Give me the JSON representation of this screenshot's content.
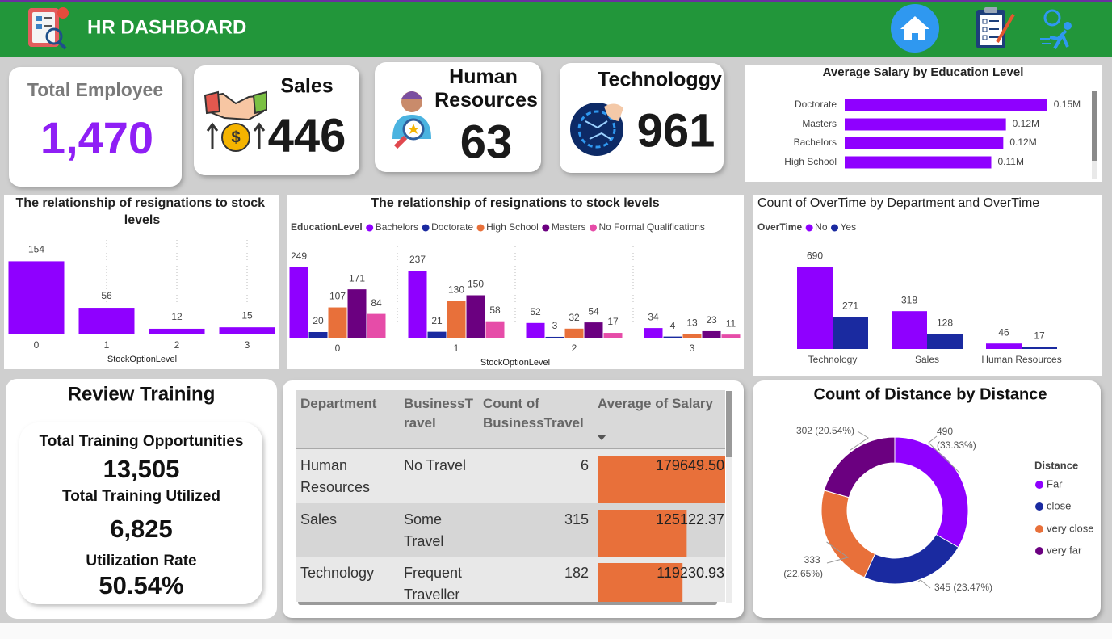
{
  "header": {
    "title": "HR DASHBOARD"
  },
  "kpis": [
    {
      "label": "Total Employee",
      "value": "1,470"
    },
    {
      "label": "Sales",
      "value": "446"
    },
    {
      "label": "Human Resources",
      "value": "63"
    },
    {
      "label": "Technologgy",
      "value": "961"
    }
  ],
  "chart_data": [
    {
      "type": "hbar",
      "title": "Average Salary by Education Level",
      "categories": [
        "Doctorate",
        "Masters",
        "Bachelors",
        "High School"
      ],
      "values": [
        152000,
        121000,
        119000,
        110000
      ],
      "value_labels": [
        "0.15M",
        "0.12M",
        "0.12M",
        "0.11M"
      ],
      "color": "#8f00ff",
      "xlim": [
        0,
        160000
      ]
    },
    {
      "type": "bar",
      "title": "The relationship of resignations to stock levels",
      "x_label": "StockOptionLevel",
      "categories": [
        "0",
        "1",
        "2",
        "3"
      ],
      "values": [
        154,
        56,
        12,
        15
      ],
      "color": "#8f00ff",
      "ylim": [
        0,
        170
      ]
    },
    {
      "type": "grouped_bar",
      "title": "The relationship of resignations to stock levels",
      "x_label": "StockOptionLevel",
      "legend_title": "EducationLevel",
      "categories": [
        "0",
        "1",
        "2",
        "3"
      ],
      "ylim": [
        0,
        260
      ],
      "series": [
        {
          "name": "Bachelors",
          "color": "#8f00ff",
          "values": [
            249,
            237,
            52,
            34
          ]
        },
        {
          "name": "Doctorate",
          "color": "#1a2aa0",
          "values": [
            20,
            21,
            3,
            4
          ]
        },
        {
          "name": "High School",
          "color": "#e8703a",
          "values": [
            107,
            130,
            32,
            13
          ]
        },
        {
          "name": "Masters",
          "color": "#6b0080",
          "values": [
            171,
            150,
            54,
            23
          ]
        },
        {
          "name": "No Formal Qualifications",
          "color": "#e64ca8",
          "values": [
            84,
            58,
            17,
            11
          ]
        }
      ]
    },
    {
      "type": "grouped_bar",
      "title": "Count of OverTime by Department and OverTime",
      "legend_title": "OverTime",
      "categories": [
        "Technology",
        "Sales",
        "Human Resources"
      ],
      "ylim": [
        0,
        720
      ],
      "series": [
        {
          "name": "No",
          "color": "#8f00ff",
          "values": [
            690,
            318,
            46
          ]
        },
        {
          "name": "Yes",
          "color": "#1a2aa0",
          "values": [
            271,
            128,
            17
          ]
        }
      ]
    },
    {
      "type": "donut",
      "title": "Count of Distance by Distance",
      "legend_title": "Distance",
      "categories": [
        "Far",
        "close",
        "very close",
        "very far"
      ],
      "values": [
        490,
        345,
        333,
        302
      ],
      "value_labels": [
        "490 (33.33%)",
        "345 (23.47%)",
        "333 (22.65%)",
        "302 (20.54%)"
      ],
      "colors": [
        "#8f00ff",
        "#1a2aa0",
        "#e8703a",
        "#6b0080"
      ]
    }
  ],
  "training": {
    "title": "Review Training",
    "items": [
      {
        "label": "Total Training Opportunities",
        "value": "13,505"
      },
      {
        "label": "Total Training Utilized",
        "value": "6,825"
      },
      {
        "label": "Utilization Rate",
        "value": "50.54%"
      }
    ]
  },
  "table": {
    "columns": [
      "Department",
      "BusinessTravel",
      "Count of BusinessTravel",
      "Average of Salary"
    ],
    "rows": [
      {
        "department": "Human Resources",
        "travel": "No Travel",
        "count": 6,
        "salary": 179649.5,
        "salary_label": "179649.50"
      },
      {
        "department": "Sales",
        "travel": "Some Travel",
        "count": 315,
        "salary": 125122.37,
        "salary_label": "125122.37"
      },
      {
        "department": "Technology",
        "travel": "Frequent Traveller",
        "count": 182,
        "salary": 119230.93,
        "salary_label": "119230.93"
      }
    ]
  }
}
